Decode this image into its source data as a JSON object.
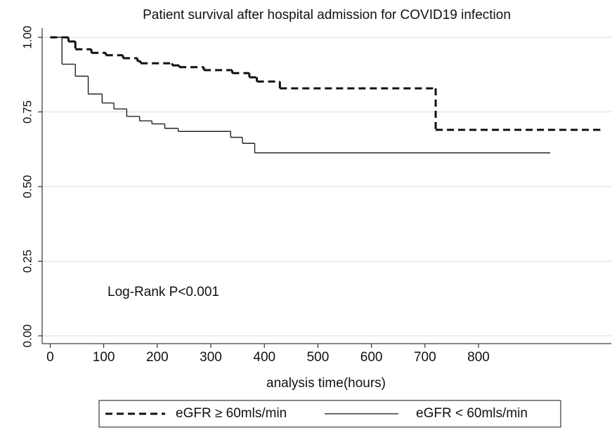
{
  "chart_data": {
    "type": "step",
    "title": "Patient survival after hospital admission for COVID19 infection",
    "x_label": "analysis time(hours)",
    "annotation": "Log-Rank P<0.001",
    "xlim": [
      -15,
      1048
    ],
    "xticks": [
      0,
      100,
      200,
      300,
      400,
      500,
      600,
      700,
      800
    ],
    "ylim": [
      -0.026,
      1.031
    ],
    "yticks": [
      {
        "value": 0,
        "label": "0.00"
      },
      {
        "value": 0.25,
        "label": "0.25"
      },
      {
        "value": 0.5,
        "label": "0.50"
      },
      {
        "value": 0.75,
        "label": "0.75"
      },
      {
        "value": 1,
        "label": "1.00"
      }
    ],
    "grid": true,
    "series": [
      {
        "name": "eGFR ≥ 60mls/min",
        "color": "#111111",
        "line_style": "dashed",
        "x": [
          0,
          34,
          47,
          77,
          104,
          136,
          163,
          169,
          228,
          241,
          287,
          340,
          372,
          386,
          429,
          720,
          1028
        ],
        "values": [
          1.0,
          0.986,
          0.96,
          0.948,
          0.94,
          0.93,
          0.92,
          0.913,
          0.906,
          0.9,
          0.89,
          0.88,
          0.866,
          0.852,
          0.829,
          0.69,
          0.69
        ]
      },
      {
        "name": "eGFR < 60mls/min",
        "color": "#111111",
        "line_style": "solid",
        "x": [
          0,
          22,
          47,
          71,
          97,
          119,
          143,
          167,
          190,
          214,
          239,
          337,
          359,
          382,
          934
        ],
        "values": [
          1.0,
          0.91,
          0.87,
          0.81,
          0.78,
          0.76,
          0.735,
          0.72,
          0.71,
          0.695,
          0.685,
          0.665,
          0.645,
          0.613,
          0.613
        ]
      }
    ]
  }
}
